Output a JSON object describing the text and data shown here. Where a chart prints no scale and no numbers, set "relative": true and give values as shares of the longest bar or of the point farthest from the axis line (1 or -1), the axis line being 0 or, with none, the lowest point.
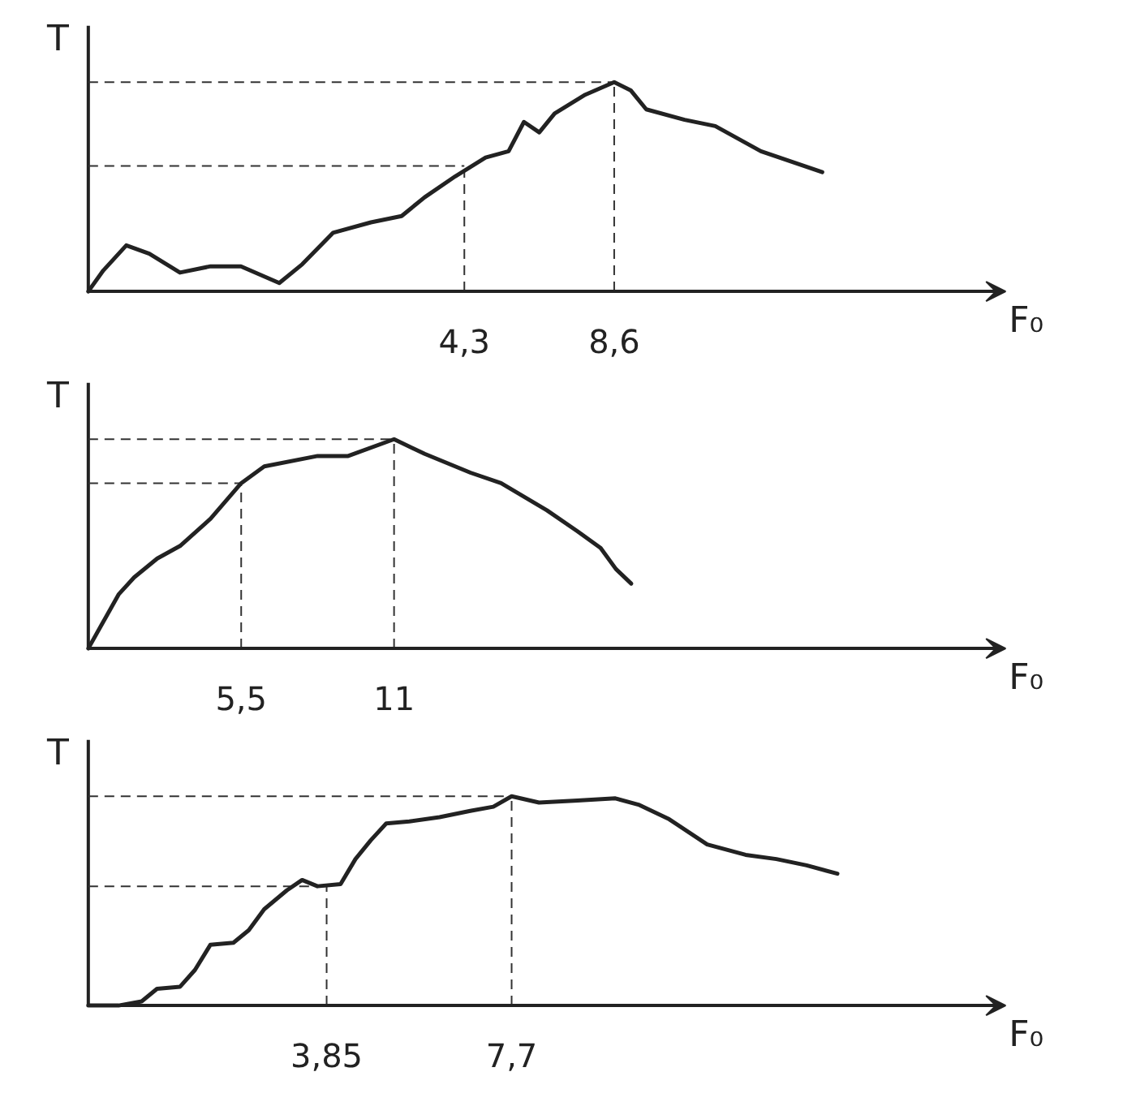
{
  "chart_data": [
    {
      "type": "line",
      "relative": true,
      "xlabel": "F₀",
      "ylabel": "T",
      "tick_labels": "x",
      "xlim": [
        -6.49,
        19.83
      ],
      "xticks": [
        {
          "value": 4.3,
          "label": "4,3"
        },
        {
          "value": 8.6,
          "label": "8,6"
        }
      ],
      "series": [
        {
          "color": "#222222",
          "x": [
            -6.49,
            -6.06,
            -5.4,
            -4.74,
            -3.86,
            -2.98,
            -2.11,
            -1.01,
            -0.35,
            0.53,
            1.62,
            2.5,
            3.16,
            4.04,
            4.91,
            5.57,
            6.01,
            6.45,
            6.89,
            7.77,
            8.6,
            9.08,
            9.52,
            10.62,
            11.5,
            12.81,
            14.57
          ],
          "values": [
            0,
            0.1,
            0.22,
            0.18,
            0.09,
            0.12,
            0.12,
            0.04,
            0.13,
            0.28,
            0.33,
            0.36,
            0.45,
            0.55,
            0.64,
            0.67,
            0.81,
            0.76,
            0.85,
            0.94,
            1.0,
            0.96,
            0.87,
            0.82,
            0.79,
            0.67,
            0.57
          ]
        }
      ],
      "ref_lines": [
        {
          "axis": "x",
          "value": 4.3,
          "line_style": "dashed"
        },
        {
          "axis": "x",
          "value": 8.6,
          "line_style": "dashed"
        },
        {
          "axis": "y",
          "value": 0.6,
          "line_style": "dashed"
        },
        {
          "axis": "y",
          "value": 1.0,
          "line_style": "dashed"
        }
      ]
    },
    {
      "type": "line",
      "relative": true,
      "xlabel": "F₀",
      "ylabel": "T",
      "tick_labels": "x",
      "xlim": [
        0,
        33
      ],
      "xticks": [
        {
          "value": 5.5,
          "label": "5,5"
        },
        11
      ],
      "series": [
        {
          "color": "#222222",
          "x": [
            0,
            0.55,
            1.1,
            1.65,
            2.48,
            3.3,
            4.4,
            5.5,
            6.33,
            8.25,
            9.35,
            11,
            12.1,
            13.75,
            14.85,
            16.5,
            17.6,
            18.43,
            18.98,
            19.53
          ],
          "values": [
            0,
            0.13,
            0.26,
            0.34,
            0.43,
            0.49,
            0.62,
            0.79,
            0.87,
            0.92,
            0.92,
            1.0,
            0.93,
            0.84,
            0.79,
            0.66,
            0.56,
            0.48,
            0.38,
            0.31
          ]
        }
      ],
      "ref_lines": [
        {
          "axis": "x",
          "value": 5.5,
          "line_style": "dashed"
        },
        {
          "axis": "x",
          "value": 11,
          "line_style": "dashed"
        },
        {
          "axis": "y",
          "value": 0.79,
          "line_style": "dashed"
        },
        {
          "axis": "y",
          "value": 1.0,
          "line_style": "dashed"
        }
      ]
    },
    {
      "type": "line",
      "relative": true,
      "xlabel": "F₀",
      "ylabel": "T",
      "tick_labels": "x",
      "xlim": [
        -1.11,
        17.98
      ],
      "xticks": [
        {
          "value": 3.85,
          "label": "3,85"
        },
        {
          "value": 7.7,
          "label": "7,7"
        }
      ],
      "series": [
        {
          "color": "#222222",
          "x": [
            -1.11,
            -0.48,
            0.0,
            0.32,
            0.8,
            1.11,
            1.43,
            1.91,
            2.23,
            2.55,
            3.02,
            3.34,
            3.66,
            4.14,
            4.45,
            4.77,
            5.09,
            5.57,
            6.2,
            6.84,
            7.32,
            7.7,
            8.27,
            9.07,
            9.86,
            10.34,
            10.98,
            11.77,
            12.57,
            13.21,
            13.84,
            14.48
          ],
          "values": [
            0,
            0,
            0.02,
            0.08,
            0.09,
            0.17,
            0.29,
            0.3,
            0.36,
            0.46,
            0.55,
            0.6,
            0.57,
            0.58,
            0.7,
            0.79,
            0.87,
            0.88,
            0.9,
            0.93,
            0.95,
            1.0,
            0.97,
            0.98,
            0.99,
            0.96,
            0.89,
            0.77,
            0.72,
            0.7,
            0.67,
            0.63
          ]
        }
      ],
      "ref_lines": [
        {
          "axis": "x",
          "value": 3.85,
          "line_style": "dashed"
        },
        {
          "axis": "x",
          "value": 7.7,
          "line_style": "dashed"
        },
        {
          "axis": "y",
          "value": 0.57,
          "line_style": "dashed"
        },
        {
          "axis": "y",
          "value": 1.0,
          "line_style": "dashed"
        }
      ]
    }
  ]
}
